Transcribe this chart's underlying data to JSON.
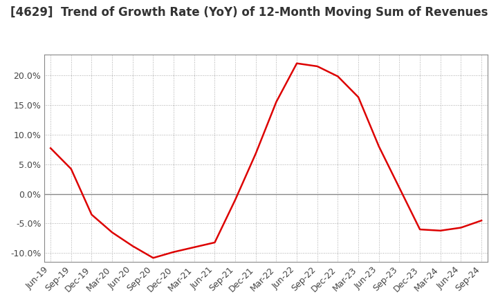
{
  "title": "[4629]  Trend of Growth Rate (YoY) of 12-Month Moving Sum of Revenues",
  "title_fontsize": 12,
  "background_color": "#ffffff",
  "plot_background_color": "#ffffff",
  "line_color": "#dd0000",
  "ylim": [
    -0.115,
    0.235
  ],
  "yticks": [
    -0.1,
    -0.05,
    0.0,
    0.05,
    0.1,
    0.15,
    0.2
  ],
  "x_labels": [
    "Jun-19",
    "Sep-19",
    "Dec-19",
    "Mar-20",
    "Jun-20",
    "Sep-20",
    "Dec-20",
    "Mar-21",
    "Jun-21",
    "Sep-21",
    "Dec-21",
    "Mar-22",
    "Jun-22",
    "Sep-22",
    "Dec-22",
    "Mar-23",
    "Jun-23",
    "Sep-23",
    "Dec-23",
    "Mar-24",
    "Jun-24",
    "Sep-24"
  ],
  "y_values": [
    0.077,
    0.042,
    -0.035,
    -0.065,
    -0.088,
    -0.108,
    -0.098,
    -0.09,
    -0.082,
    -0.01,
    0.068,
    0.155,
    0.22,
    0.215,
    0.198,
    0.163,
    0.08,
    0.01,
    -0.06,
    -0.062,
    -0.057,
    -0.045
  ],
  "grid_color": "#aaaaaa",
  "tick_fontsize": 9,
  "zero_line_color": "#888888"
}
